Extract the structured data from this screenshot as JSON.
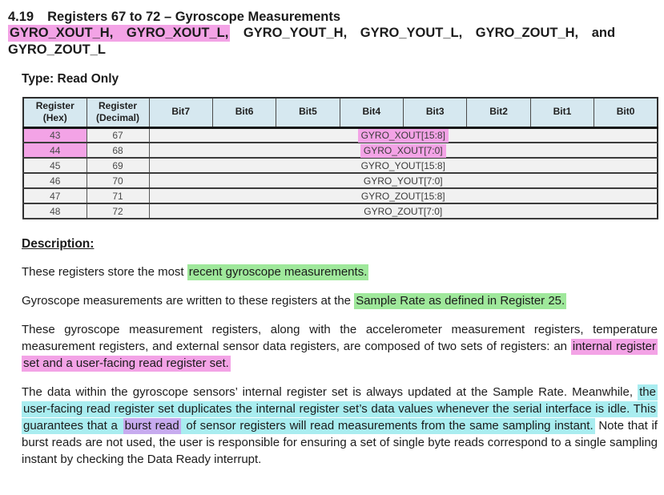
{
  "header": {
    "section_number": "4.19",
    "section_title": "Registers 67 to 72 – Gyroscope Measurements",
    "registers_highlighted": "GYRO_XOUT_H, GYRO_XOUT_L,",
    "registers_rest": "GYRO_YOUT_H, GYRO_YOUT_L, GYRO_ZOUT_H, and GYRO_ZOUT_L",
    "type_label": "Type: Read Only"
  },
  "table": {
    "column_headers": [
      "Register (Hex)",
      "Register (Decimal)",
      "Bit7",
      "Bit6",
      "Bit5",
      "Bit4",
      "Bit3",
      "Bit2",
      "Bit1",
      "Bit0"
    ],
    "rows": [
      {
        "hex": "43",
        "decimal": "67",
        "bits": "GYRO_XOUT[15:8]",
        "highlighted": true
      },
      {
        "hex": "44",
        "decimal": "68",
        "bits": "GYRO_XOUT[7:0]",
        "highlighted": true
      },
      {
        "hex": "45",
        "decimal": "69",
        "bits": "GYRO_YOUT[15:8]",
        "highlighted": false
      },
      {
        "hex": "46",
        "decimal": "70",
        "bits": "GYRO_YOUT[7:0]",
        "highlighted": false
      },
      {
        "hex": "47",
        "decimal": "71",
        "bits": "GYRO_ZOUT[15:8]",
        "highlighted": false
      },
      {
        "hex": "48",
        "decimal": "72",
        "bits": "GYRO_ZOUT[7:0]",
        "highlighted": false
      }
    ]
  },
  "description": {
    "heading": "Description:",
    "paragraphs": [
      {
        "segments": [
          {
            "text": "These registers store the most ",
            "hl": "none"
          },
          {
            "text": "recent gyroscope measurements.",
            "hl": "green"
          }
        ]
      },
      {
        "segments": [
          {
            "text": "Gyroscope measurements are written to these registers at the ",
            "hl": "none"
          },
          {
            "text": "Sample Rate as defined in Register 25.",
            "hl": "green"
          }
        ]
      },
      {
        "segments": [
          {
            "text": "These gyroscope measurement registers, along with the accelerometer measurement registers, temperature measurement registers, and external sensor data registers, are composed of two sets of registers: an ",
            "hl": "none"
          },
          {
            "text": "internal register set and a user-facing read register set.",
            "hl": "pink"
          }
        ]
      },
      {
        "segments": [
          {
            "text": "The data within the gyroscope sensors’ internal register set is always updated at the Sample Rate. Meanwhile, ",
            "hl": "none"
          },
          {
            "text": "the user-facing read register set duplicates the internal register set’s data values whenever the serial interface is idle. This guarantees that a ",
            "hl": "cyan"
          },
          {
            "text": "burst read",
            "hl": "purple"
          },
          {
            "text": " of sensor registers will read measurements from the same sampling instant.",
            "hl": "cyan"
          },
          {
            "text": " Note that if burst reads are not used, the user is responsible for ensuring a set of single byte reads correspond to a single sampling instant by checking the Data Ready interrupt.",
            "hl": "none"
          }
        ]
      }
    ]
  },
  "colors": {
    "highlight_pink": "#F3A3E6",
    "highlight_green": "#9FE89B",
    "highlight_cyan": "#A9EDF0",
    "highlight_purple": "#C7ABEF",
    "table_header_bg": "#D6E8F0",
    "table_row_bg": "#F1F1F1"
  }
}
